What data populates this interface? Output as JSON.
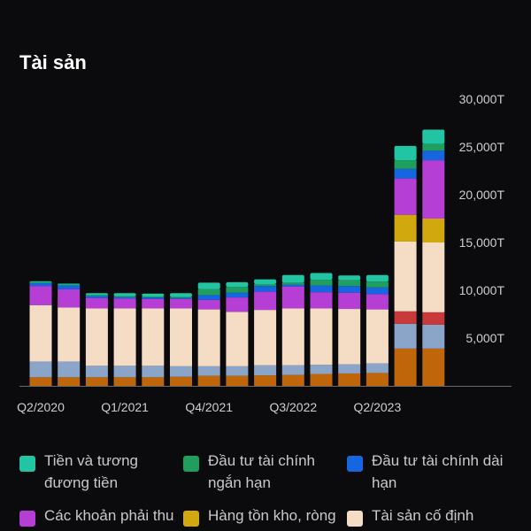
{
  "header": {
    "title": "Tài sản"
  },
  "chart_data": {
    "type": "bar",
    "stacked": true,
    "y_axis_position": "right",
    "ylim": [
      0,
      30000
    ],
    "ytick_values": [
      5000,
      10000,
      15000,
      20000,
      25000,
      30000
    ],
    "ytick_labels": [
      "5,000T",
      "10,000T",
      "15,000T",
      "20,000T",
      "25,000T",
      "30,000T"
    ],
    "xtick_labels": [
      {
        "bar_index": 0,
        "label": "Q2/2020"
      },
      {
        "bar_index": 3,
        "label": "Q1/2021"
      },
      {
        "bar_index": 6,
        "label": "Q4/2021"
      },
      {
        "bar_index": 9,
        "label": "Q3/2022"
      },
      {
        "bar_index": 12,
        "label": "Q2/2023"
      }
    ],
    "bar_count": 15,
    "series": [
      {
        "color": "#c0660a",
        "values": [
          900,
          900,
          900,
          900,
          900,
          950,
          1050,
          1050,
          1100,
          1150,
          1250,
          1300,
          1350,
          3900,
          3900
        ]
      },
      {
        "color": "#8aa5c8",
        "values": [
          1650,
          1650,
          1200,
          1200,
          1200,
          1100,
          1000,
          1000,
          1050,
          1000,
          950,
          950,
          1000,
          2600,
          2500
        ]
      },
      {
        "color": "#c83a3a",
        "values": [
          0,
          0,
          0,
          0,
          0,
          0,
          0,
          0,
          0,
          0,
          0,
          0,
          0,
          1300,
          1300
        ]
      },
      {
        "name": "Tài sản cố định",
        "color": "#f5dcc4",
        "values": [
          5900,
          5650,
          6000,
          6000,
          6000,
          6050,
          5950,
          5700,
          5800,
          5950,
          5900,
          5800,
          5650,
          7300,
          7300
        ]
      },
      {
        "name": "Hàng tồn kho, ròng",
        "color": "#d1a90e",
        "values": [
          0,
          0,
          0,
          0,
          0,
          0,
          0,
          0,
          0,
          0,
          0,
          0,
          0,
          2800,
          2500
        ]
      },
      {
        "name": "Các khoản phải thu",
        "color": "#b53fd4",
        "values": [
          2000,
          1900,
          1100,
          1050,
          1000,
          1000,
          1000,
          1500,
          1900,
          2300,
          1700,
          1700,
          1600,
          3800,
          6100
        ]
      },
      {
        "name": "Đầu tư tài chính dài hạn",
        "color": "#1566e0",
        "values": [
          300,
          400,
          200,
          150,
          150,
          100,
          500,
          500,
          600,
          200,
          700,
          700,
          700,
          1000,
          1000
        ]
      },
      {
        "name": "Đầu tư tài chính ngắn hạn",
        "color": "#1f9e5e",
        "values": [
          100,
          100,
          100,
          100,
          100,
          100,
          600,
          600,
          200,
          200,
          600,
          600,
          600,
          900,
          700
        ]
      },
      {
        "name": "Tiền và tương đương tiền",
        "color": "#21c4a3",
        "values": [
          100,
          100,
          200,
          300,
          300,
          400,
          700,
          500,
          500,
          800,
          700,
          500,
          700,
          1500,
          1500
        ]
      }
    ]
  },
  "legend": [
    {
      "label": "Tiền và tương đương tiền",
      "color": "#21c4a3",
      "icon": "swatch"
    },
    {
      "label": "Đầu tư tài chính ngắn hạn",
      "color": "#1f9e5e",
      "icon": "swatch"
    },
    {
      "label": "Đầu tư tài chính dài hạn",
      "color": "#1566e0",
      "icon": "swatch"
    },
    {
      "label": "Các khoản phải thu",
      "color": "#b53fd4",
      "icon": "swatch"
    },
    {
      "label": "Hàng tồn kho, ròng",
      "color": "#d1a90e",
      "icon": "swatch"
    },
    {
      "label": "Tài sản cố định",
      "color": "#f5dcc4",
      "icon": "swatch"
    }
  ]
}
